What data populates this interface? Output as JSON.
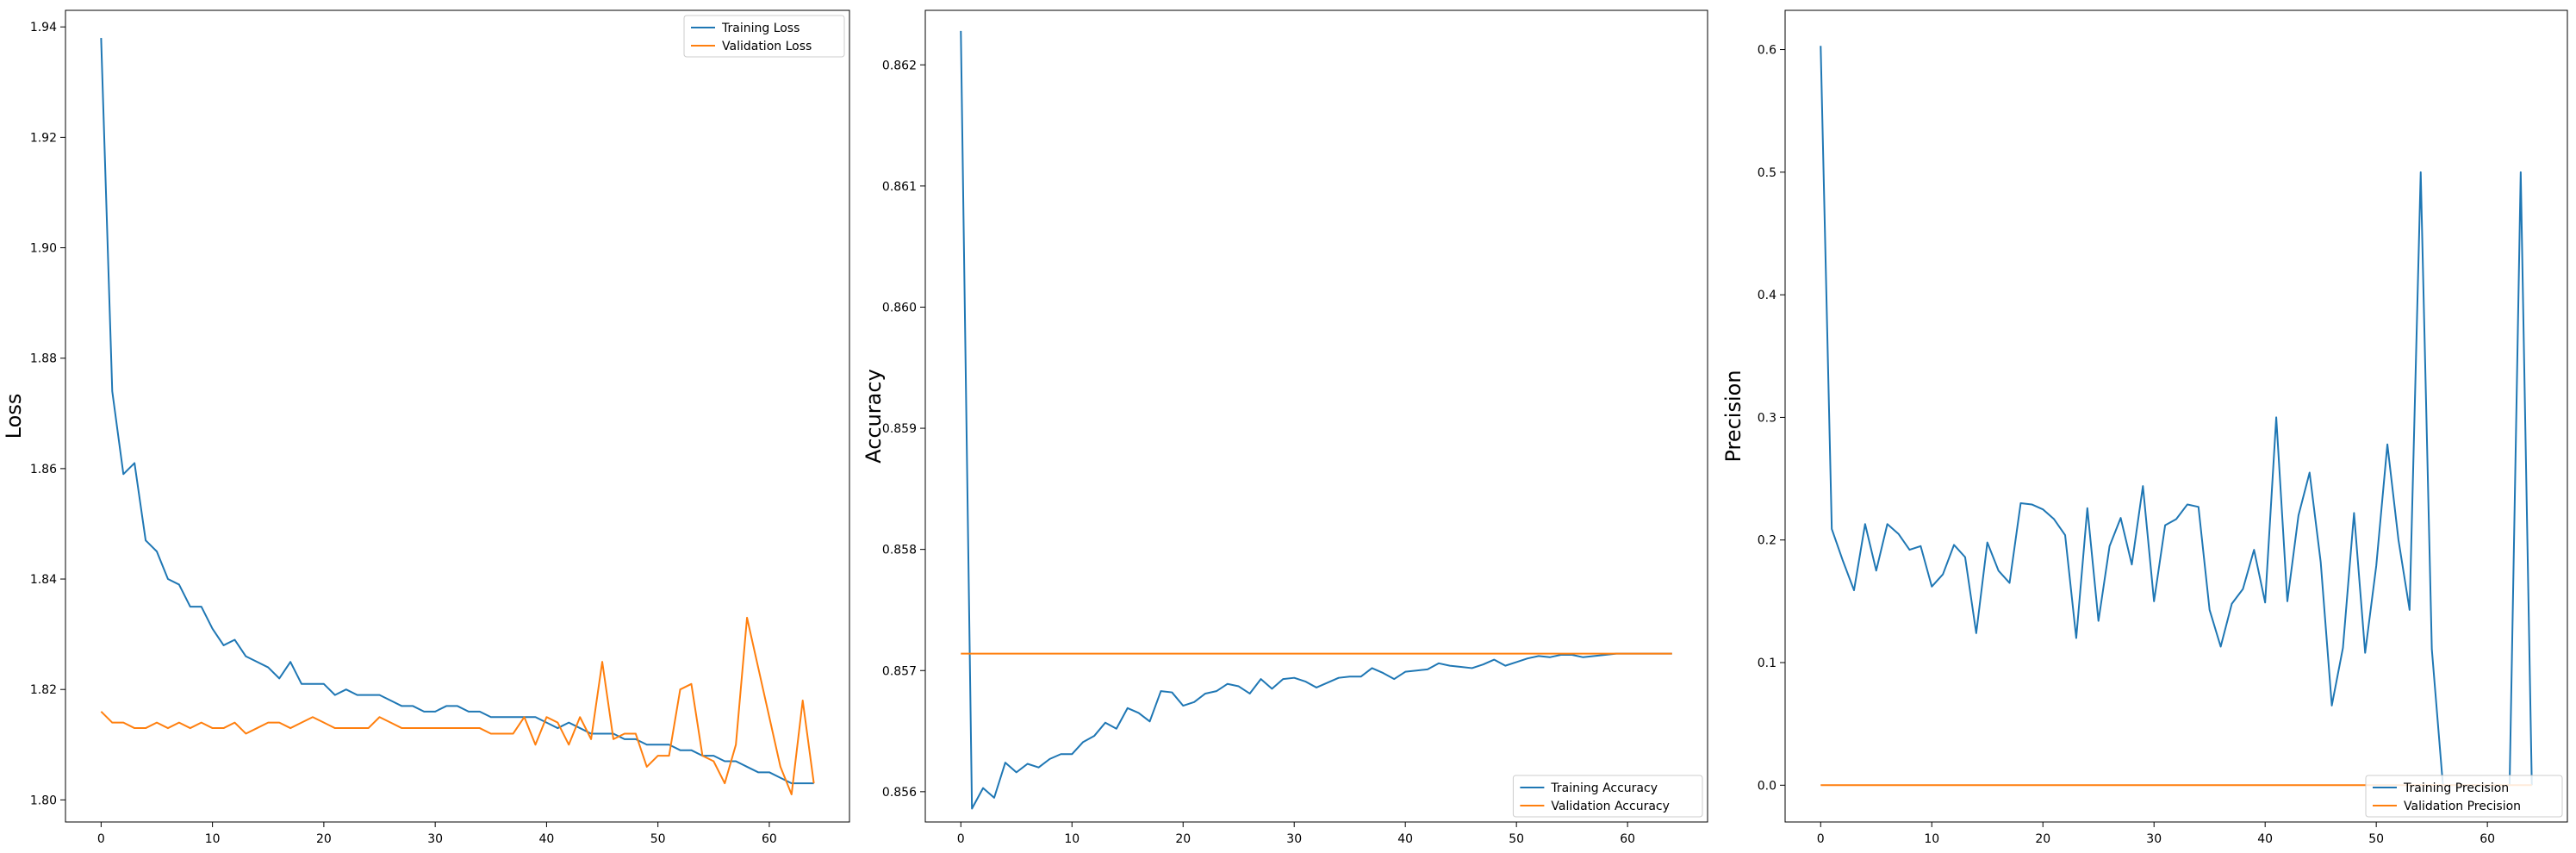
{
  "colors": {
    "training": "#1f77b4",
    "validation": "#ff7f0e"
  },
  "chart_data": [
    {
      "type": "line",
      "ylabel": "Loss",
      "xlim": [
        -3.2,
        67.2
      ],
      "ylim": [
        1.796,
        1.943
      ],
      "xticks": [
        0,
        10,
        20,
        30,
        40,
        50,
        60
      ],
      "yticks": [
        1.8,
        1.82,
        1.84,
        1.86,
        1.88,
        1.9,
        1.92,
        1.94
      ],
      "ytick_labels": [
        "1.80",
        "1.82",
        "1.84",
        "1.86",
        "1.88",
        "1.90",
        "1.92",
        "1.94"
      ],
      "legend_loc": "upper-right",
      "series": [
        {
          "name": "Training Loss",
          "values": [
            1.938,
            1.874,
            1.859,
            1.861,
            1.847,
            1.845,
            1.84,
            1.839,
            1.835,
            1.835,
            1.831,
            1.828,
            1.829,
            1.826,
            1.825,
            1.824,
            1.822,
            1.825,
            1.821,
            1.821,
            1.821,
            1.819,
            1.82,
            1.819,
            1.819,
            1.819,
            1.818,
            1.817,
            1.817,
            1.816,
            1.816,
            1.817,
            1.817,
            1.816,
            1.816,
            1.815,
            1.815,
            1.815,
            1.815,
            1.815,
            1.814,
            1.813,
            1.814,
            1.813,
            1.812,
            1.812,
            1.812,
            1.811,
            1.811,
            1.81,
            1.81,
            1.81,
            1.809,
            1.809,
            1.808,
            1.808,
            1.807,
            1.807,
            1.806,
            1.805,
            1.805,
            1.804,
            1.803,
            1.803,
            1.803
          ]
        },
        {
          "name": "Validation Loss",
          "values": [
            1.816,
            1.814,
            1.814,
            1.813,
            1.813,
            1.814,
            1.813,
            1.814,
            1.813,
            1.814,
            1.813,
            1.813,
            1.814,
            1.812,
            1.813,
            1.814,
            1.814,
            1.813,
            1.814,
            1.815,
            1.814,
            1.813,
            1.813,
            1.813,
            1.813,
            1.815,
            1.814,
            1.813,
            1.813,
            1.813,
            1.813,
            1.813,
            1.813,
            1.813,
            1.813,
            1.812,
            1.812,
            1.812,
            1.815,
            1.81,
            1.815,
            1.814,
            1.81,
            1.815,
            1.811,
            1.825,
            1.811,
            1.812,
            1.812,
            1.806,
            1.808,
            1.808,
            1.82,
            1.821,
            1.808,
            1.807,
            1.803,
            1.81,
            1.833,
            1.824,
            1.815,
            1.806,
            1.801,
            1.818,
            1.803
          ]
        }
      ]
    },
    {
      "type": "line",
      "ylabel": "Accuracy",
      "xlim": [
        -3.2,
        67.2
      ],
      "ylim": [
        0.85575,
        0.86245
      ],
      "xticks": [
        0,
        10,
        20,
        30,
        40,
        50,
        60
      ],
      "yticks": [
        0.856,
        0.857,
        0.858,
        0.859,
        0.86,
        0.861,
        0.862
      ],
      "ytick_labels": [
        "0.856",
        "0.857",
        "0.858",
        "0.859",
        "0.860",
        "0.861",
        "0.862"
      ],
      "legend_loc": "lower-right",
      "series": [
        {
          "name": "Training Accuracy",
          "values": [
            0.86228,
            0.85586,
            0.85603,
            0.85595,
            0.85624,
            0.85616,
            0.85623,
            0.8562,
            0.85627,
            0.85631,
            0.85631,
            0.85641,
            0.85646,
            0.85657,
            0.85652,
            0.85669,
            0.85665,
            0.85658,
            0.85683,
            0.85682,
            0.85671,
            0.85674,
            0.85681,
            0.85683,
            0.85689,
            0.85687,
            0.85681,
            0.85693,
            0.85685,
            0.85693,
            0.85694,
            0.85691,
            0.85686,
            0.8569,
            0.85694,
            0.85695,
            0.85695,
            0.85702,
            0.85698,
            0.85693,
            0.85699,
            0.857,
            0.85701,
            0.85706,
            0.85704,
            0.85703,
            0.85702,
            0.85705,
            0.85709,
            0.85704,
            0.85707,
            0.8571,
            0.85712,
            0.85711,
            0.85713,
            0.85713,
            0.85711,
            0.85712,
            0.85713,
            0.85714,
            0.85714,
            0.85714,
            0.85714,
            0.85714,
            0.85714
          ]
        },
        {
          "name": "Validation Accuracy",
          "values": [
            0.85714,
            0.85714,
            0.85714,
            0.85714,
            0.85714,
            0.85714,
            0.85714,
            0.85714,
            0.85714,
            0.85714,
            0.85714,
            0.85714,
            0.85714,
            0.85714,
            0.85714,
            0.85714,
            0.85714,
            0.85714,
            0.85714,
            0.85714,
            0.85714,
            0.85714,
            0.85714,
            0.85714,
            0.85714,
            0.85714,
            0.85714,
            0.85714,
            0.85714,
            0.85714,
            0.85714,
            0.85714,
            0.85714,
            0.85714,
            0.85714,
            0.85714,
            0.85714,
            0.85714,
            0.85714,
            0.85714,
            0.85714,
            0.85714,
            0.85714,
            0.85714,
            0.85714,
            0.85714,
            0.85714,
            0.85714,
            0.85714,
            0.85714,
            0.85714,
            0.85714,
            0.85714,
            0.85714,
            0.85714,
            0.85714,
            0.85714,
            0.85714,
            0.85714,
            0.85714,
            0.85714,
            0.85714,
            0.85714,
            0.85714,
            0.85714
          ]
        }
      ]
    },
    {
      "type": "line",
      "ylabel": "Precision",
      "xlim": [
        -3.2,
        67.2
      ],
      "ylim": [
        -0.03,
        0.632
      ],
      "xticks": [
        0,
        10,
        20,
        30,
        40,
        50,
        60
      ],
      "yticks": [
        0.0,
        0.1,
        0.2,
        0.3,
        0.4,
        0.5,
        0.6
      ],
      "ytick_labels": [
        "0.0",
        "0.1",
        "0.2",
        "0.3",
        "0.4",
        "0.5",
        "0.6"
      ],
      "legend_loc": "lower-right",
      "series": [
        {
          "name": "Training Precision",
          "values": [
            0.603,
            0.209,
            0.183,
            0.159,
            0.213,
            0.175,
            0.213,
            0.205,
            0.192,
            0.195,
            0.162,
            0.172,
            0.196,
            0.186,
            0.124,
            0.198,
            0.175,
            0.165,
            0.23,
            0.229,
            0.225,
            0.217,
            0.204,
            0.12,
            0.226,
            0.134,
            0.195,
            0.218,
            0.18,
            0.244,
            0.15,
            0.212,
            0.217,
            0.229,
            0.227,
            0.143,
            0.113,
            0.148,
            0.16,
            0.192,
            0.149,
            0.3,
            0.15,
            0.22,
            0.255,
            0.182,
            0.065,
            0.112,
            0.222,
            0.108,
            0.179,
            0.278,
            0.2,
            0.143,
            0.5,
            0.111,
            0.0,
            0.0,
            0.0,
            0.0,
            0.0,
            0.0,
            0.0,
            0.5,
            0.0
          ]
        },
        {
          "name": "Validation Precision",
          "values": [
            0.0,
            0.0,
            0.0,
            0.0,
            0.0,
            0.0,
            0.0,
            0.0,
            0.0,
            0.0,
            0.0,
            0.0,
            0.0,
            0.0,
            0.0,
            0.0,
            0.0,
            0.0,
            0.0,
            0.0,
            0.0,
            0.0,
            0.0,
            0.0,
            0.0,
            0.0,
            0.0,
            0.0,
            0.0,
            0.0,
            0.0,
            0.0,
            0.0,
            0.0,
            0.0,
            0.0,
            0.0,
            0.0,
            0.0,
            0.0,
            0.0,
            0.0,
            0.0,
            0.0,
            0.0,
            0.0,
            0.0,
            0.0,
            0.0,
            0.0,
            0.0,
            0.0,
            0.0,
            0.0,
            0.0,
            0.0,
            0.0,
            0.0,
            0.0,
            0.0,
            0.0,
            0.0,
            0.0,
            0.0,
            0.0
          ]
        }
      ]
    }
  ]
}
